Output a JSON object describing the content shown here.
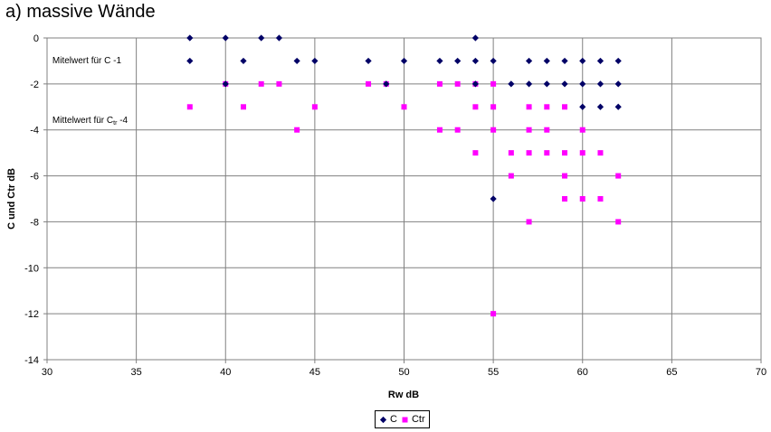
{
  "chart_data": {
    "type": "scatter",
    "title": "a) massive Wände",
    "xlabel": "Rw  dB",
    "ylabel": "C und Ctr  dB",
    "xlim": [
      30,
      70
    ],
    "ylim": [
      -14,
      0
    ],
    "x_ticks": [
      30,
      35,
      40,
      45,
      50,
      55,
      60,
      65,
      70
    ],
    "y_ticks": [
      0,
      -2,
      -4,
      -6,
      -8,
      -10,
      -12,
      -14
    ],
    "grid": true,
    "legend_position": "bottom-center",
    "annotations": [
      {
        "text": "Mitelwert für C -1",
        "x": 30.3,
        "y": -1.1
      },
      {
        "text": "Mittelwert für C",
        "sub": "tr",
        "suffix": " -4",
        "x": 30.3,
        "y": -3.7
      }
    ],
    "series": [
      {
        "name": "C",
        "color": "#000066",
        "marker": "diamond",
        "points": [
          [
            38,
            0
          ],
          [
            40,
            0
          ],
          [
            42,
            0
          ],
          [
            43,
            0
          ],
          [
            54,
            0
          ],
          [
            38,
            -1
          ],
          [
            41,
            -1
          ],
          [
            44,
            -1
          ],
          [
            45,
            -1
          ],
          [
            48,
            -1
          ],
          [
            50,
            -1
          ],
          [
            52,
            -1
          ],
          [
            53,
            -1
          ],
          [
            54,
            -1
          ],
          [
            55,
            -1
          ],
          [
            57,
            -1
          ],
          [
            58,
            -1
          ],
          [
            59,
            -1
          ],
          [
            60,
            -1
          ],
          [
            61,
            -1
          ],
          [
            62,
            -1
          ],
          [
            40,
            -2
          ],
          [
            49,
            -2
          ],
          [
            54,
            -2
          ],
          [
            56,
            -2
          ],
          [
            57,
            -2
          ],
          [
            58,
            -2
          ],
          [
            59,
            -2
          ],
          [
            60,
            -2
          ],
          [
            61,
            -2
          ],
          [
            62,
            -2
          ],
          [
            60,
            -3
          ],
          [
            61,
            -3
          ],
          [
            62,
            -3
          ],
          [
            55,
            -7
          ]
        ]
      },
      {
        "name": "Ctr",
        "color": "#FF00FF",
        "marker": "square",
        "points": [
          [
            40,
            -2
          ],
          [
            42,
            -2
          ],
          [
            43,
            -2
          ],
          [
            48,
            -2
          ],
          [
            49,
            -2
          ],
          [
            52,
            -2
          ],
          [
            53,
            -2
          ],
          [
            54,
            -2
          ],
          [
            55,
            -2
          ],
          [
            38,
            -3
          ],
          [
            41,
            -3
          ],
          [
            45,
            -3
          ],
          [
            50,
            -3
          ],
          [
            54,
            -3
          ],
          [
            55,
            -3
          ],
          [
            57,
            -3
          ],
          [
            58,
            -3
          ],
          [
            59,
            -3
          ],
          [
            44,
            -4
          ],
          [
            52,
            -4
          ],
          [
            53,
            -4
          ],
          [
            55,
            -4
          ],
          [
            57,
            -4
          ],
          [
            58,
            -4
          ],
          [
            60,
            -4
          ],
          [
            54,
            -5
          ],
          [
            56,
            -5
          ],
          [
            57,
            -5
          ],
          [
            58,
            -5
          ],
          [
            59,
            -5
          ],
          [
            60,
            -5
          ],
          [
            61,
            -5
          ],
          [
            56,
            -6
          ],
          [
            59,
            -6
          ],
          [
            62,
            -6
          ],
          [
            59,
            -7
          ],
          [
            60,
            -7
          ],
          [
            61,
            -7
          ],
          [
            57,
            -8
          ],
          [
            62,
            -8
          ],
          [
            55,
            -12
          ]
        ]
      }
    ]
  }
}
